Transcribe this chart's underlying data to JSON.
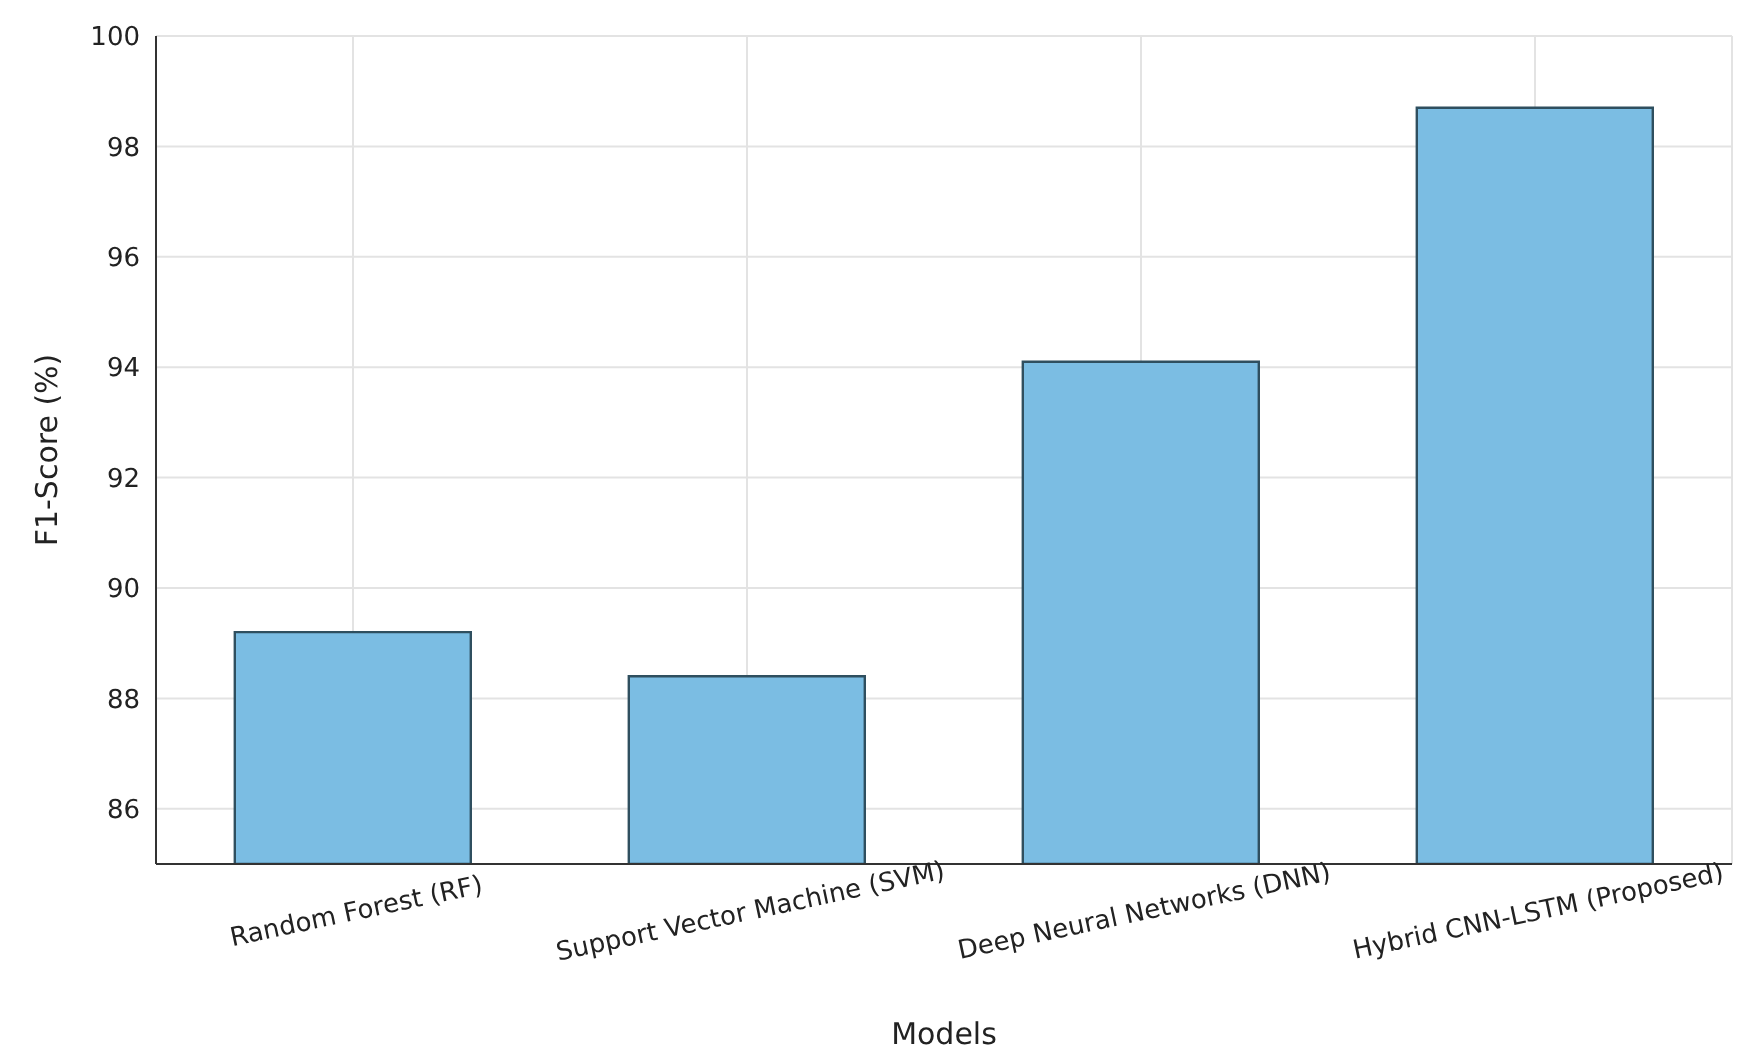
{
  "chart_data": {
    "type": "bar",
    "xlabel": "Models",
    "ylabel": "F1-Score (%)",
    "categories": [
      "Random Forest (RF)",
      "Support Vector Machine (SVM)",
      "Deep Neural Networks (DNN)",
      "Hybrid CNN-LSTM (Proposed)"
    ],
    "values": [
      89.2,
      88.4,
      94.1,
      98.7
    ],
    "color": "#7bbde3",
    "ylim": [
      85,
      100
    ],
    "yticks": [
      86,
      88,
      90,
      92,
      94,
      96,
      98,
      100
    ],
    "grid": true
  }
}
